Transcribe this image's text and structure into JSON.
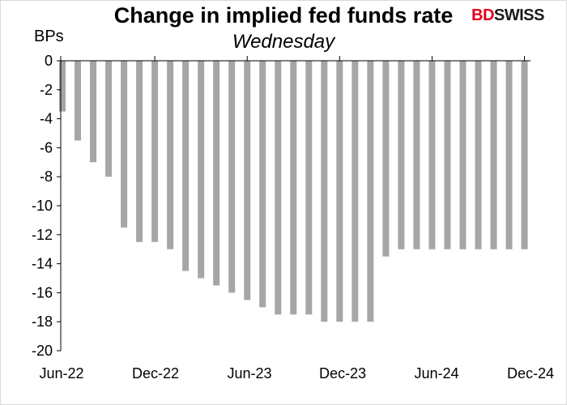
{
  "chart_data": {
    "type": "bar",
    "title": "Change in implied fed funds rate",
    "subtitle": "Wednesday",
    "ylabel": "BPs",
    "xlabel": "",
    "ylim": [
      -20,
      0
    ],
    "yticks": [
      0,
      -2,
      -4,
      -6,
      -8,
      -10,
      -12,
      -14,
      -16,
      -18,
      -20
    ],
    "xtick_labels": [
      "Jun-22",
      "Dec-22",
      "Jun-23",
      "Dec-23",
      "Jun-24",
      "Dec-24"
    ],
    "categories": [
      "Jun-22",
      "Jul-22",
      "Aug-22",
      "Sep-22",
      "Oct-22",
      "Nov-22",
      "Dec-22",
      "Jan-23",
      "Feb-23",
      "Mar-23",
      "Apr-23",
      "May-23",
      "Jun-23",
      "Jul-23",
      "Aug-23",
      "Sep-23",
      "Oct-23",
      "Nov-23",
      "Dec-23",
      "Jan-24",
      "Feb-24",
      "Mar-24",
      "Apr-24",
      "May-24",
      "Jun-24",
      "Jul-24",
      "Aug-24",
      "Sep-24",
      "Oct-24",
      "Nov-24",
      "Dec-24"
    ],
    "values": [
      -3.5,
      -5.5,
      -7,
      -8,
      -11.5,
      -12.5,
      -12.5,
      -13,
      -14.5,
      -15,
      -15.5,
      -16,
      -16.5,
      -17,
      -17.5,
      -17.5,
      -17.5,
      -18,
      -18,
      -18,
      -18,
      -13.5,
      -13,
      -13,
      -13,
      -13,
      -13,
      -13,
      -13,
      -13,
      -13
    ],
    "bar_color": "#a6a6a6",
    "grid": false,
    "legend": "none"
  },
  "logo": {
    "part1": "BD",
    "part2": "SWISS"
  }
}
